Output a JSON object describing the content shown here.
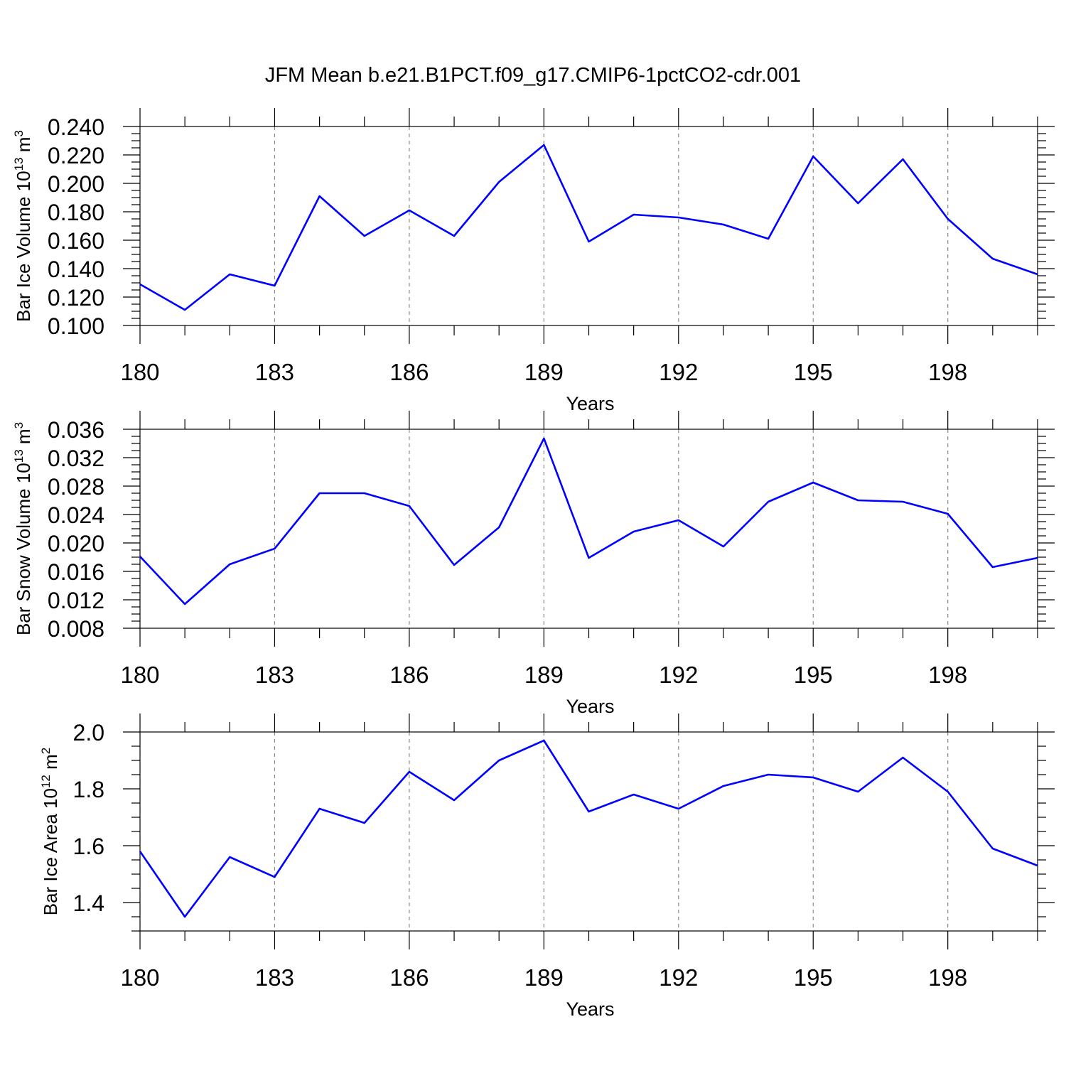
{
  "title": "JFM Mean b.e21.B1PCT.f09_g17.CMIP6-1pctCO2-cdr.001",
  "chart_data": [
    {
      "type": "line",
      "ylabel": "Bar Ice Volume 10",
      "ylabel_sup": "13",
      "ylabel_unit": " m",
      "ylabel_unit_sup": "3",
      "xlabel": "Years",
      "xlim": [
        180,
        200
      ],
      "ylim": [
        0.1,
        0.24
      ],
      "xticks": [
        180,
        183,
        186,
        189,
        192,
        195,
        198
      ],
      "xtick_labels": [
        "180",
        "183",
        "186",
        "189",
        "192",
        "195",
        "198"
      ],
      "yticks": [
        0.1,
        0.12,
        0.14,
        0.16,
        0.18,
        0.2,
        0.22,
        0.24
      ],
      "ytick_labels": [
        "0.100",
        "0.120",
        "0.140",
        "0.160",
        "0.180",
        "0.200",
        "0.220",
        "0.240"
      ],
      "y_minor_step": 0.005,
      "grid": "dashed vertical lines at major x ticks",
      "series_color": "#0000ff",
      "x": [
        180,
        181,
        182,
        183,
        184,
        185,
        186,
        187,
        188,
        189,
        190,
        191,
        192,
        193,
        194,
        195,
        196,
        197,
        198,
        199,
        200
      ],
      "y": [
        0.129,
        0.111,
        0.136,
        0.128,
        0.191,
        0.163,
        0.181,
        0.163,
        0.201,
        0.227,
        0.159,
        0.178,
        0.176,
        0.171,
        0.161,
        0.219,
        0.186,
        0.217,
        0.175,
        0.147,
        0.136
      ]
    },
    {
      "type": "line",
      "ylabel": "Bar Snow Volume 10",
      "ylabel_sup": "13",
      "ylabel_unit": " m",
      "ylabel_unit_sup": "3",
      "xlabel": "Years",
      "xlim": [
        180,
        200
      ],
      "ylim": [
        0.008,
        0.036
      ],
      "xticks": [
        180,
        183,
        186,
        189,
        192,
        195,
        198
      ],
      "xtick_labels": [
        "180",
        "183",
        "186",
        "189",
        "192",
        "195",
        "198"
      ],
      "yticks": [
        0.008,
        0.012,
        0.016,
        0.02,
        0.024,
        0.028,
        0.032,
        0.036
      ],
      "ytick_labels": [
        "0.008",
        "0.012",
        "0.016",
        "0.020",
        "0.024",
        "0.028",
        "0.032",
        "0.036"
      ],
      "y_minor_step": 0.001,
      "grid": "dashed vertical lines at major x ticks",
      "series_color": "#0000ff",
      "x": [
        180,
        181,
        182,
        183,
        184,
        185,
        186,
        187,
        188,
        189,
        190,
        191,
        192,
        193,
        194,
        195,
        196,
        197,
        198,
        199,
        200
      ],
      "y": [
        0.0181,
        0.0114,
        0.017,
        0.0192,
        0.027,
        0.027,
        0.0252,
        0.0169,
        0.0222,
        0.0347,
        0.0179,
        0.0216,
        0.0232,
        0.0195,
        0.0258,
        0.0285,
        0.026,
        0.0258,
        0.0241,
        0.0166,
        0.0179
      ]
    },
    {
      "type": "line",
      "ylabel": "Bar Ice Area 10",
      "ylabel_sup": "12",
      "ylabel_unit": " m",
      "ylabel_unit_sup": "2",
      "xlabel": "Years",
      "xlim": [
        180,
        200
      ],
      "ylim": [
        1.3,
        2.0
      ],
      "xticks": [
        180,
        183,
        186,
        189,
        192,
        195,
        198
      ],
      "xtick_labels": [
        "180",
        "183",
        "186",
        "189",
        "192",
        "195",
        "198"
      ],
      "yticks": [
        1.4,
        1.6,
        1.8,
        2.0
      ],
      "ytick_labels": [
        "1.4",
        "1.6",
        "1.8",
        "2.0"
      ],
      "y_minor_step": 0.05,
      "grid": "dashed vertical lines at major x ticks",
      "series_color": "#0000ff",
      "x": [
        180,
        181,
        182,
        183,
        184,
        185,
        186,
        187,
        188,
        189,
        190,
        191,
        192,
        193,
        194,
        195,
        196,
        197,
        198,
        199,
        200
      ],
      "y": [
        1.58,
        1.35,
        1.56,
        1.49,
        1.73,
        1.68,
        1.86,
        1.76,
        1.9,
        1.97,
        1.72,
        1.78,
        1.73,
        1.81,
        1.85,
        1.84,
        1.79,
        1.91,
        1.79,
        1.59,
        1.53
      ]
    }
  ]
}
